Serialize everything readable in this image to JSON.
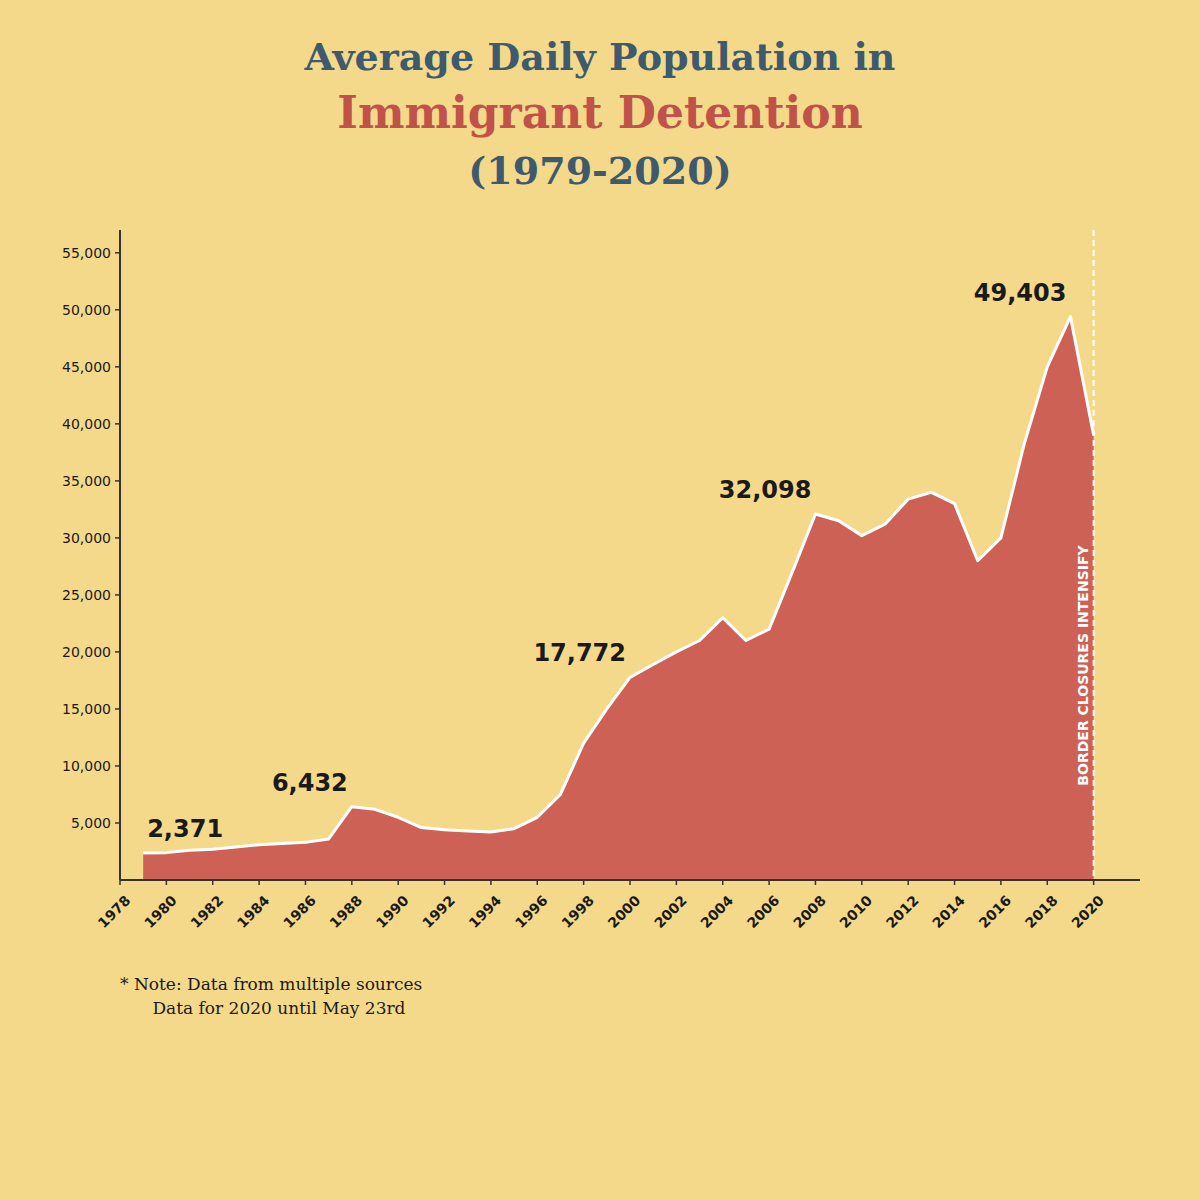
{
  "chart_data": {
    "type": "area",
    "title": "Average Daily Population in\nImmigrant Detention\n(1979-2020)",
    "x": [
      1979,
      1980,
      1981,
      1982,
      1983,
      1984,
      1985,
      1986,
      1987,
      1988,
      1989,
      1990,
      1991,
      1992,
      1993,
      1994,
      1995,
      1996,
      1997,
      1998,
      1999,
      2000,
      2001,
      2002,
      2003,
      2004,
      2005,
      2006,
      2007,
      2008,
      2009,
      2010,
      2011,
      2012,
      2013,
      2014,
      2015,
      2016,
      2017,
      2018,
      2019,
      2020
    ],
    "values": [
      2371,
      2400,
      2600,
      2700,
      2900,
      3100,
      3200,
      3300,
      3600,
      6432,
      6200,
      5500,
      4600,
      4400,
      4300,
      4200,
      4500,
      5500,
      7500,
      12000,
      15000,
      17772,
      18900,
      20000,
      21000,
      23000,
      21000,
      22000,
      27000,
      32098,
      31500,
      30200,
      31200,
      33400,
      34000,
      33000,
      28000,
      30000,
      38200,
      45000,
      49403,
      39000
    ],
    "color": "#cd6155",
    "xlim": [
      1978,
      2022
    ],
    "xticks": [
      1978,
      1980,
      1982,
      1984,
      1986,
      1988,
      1990,
      1992,
      1994,
      1996,
      1998,
      2000,
      2002,
      2004,
      2006,
      2008,
      2010,
      2012,
      2014,
      2016,
      2018,
      2020
    ],
    "ylim": [
      0,
      57000
    ],
    "yticks": [
      {
        "value": 5000,
        "label": "5,000"
      },
      {
        "value": 10000,
        "label": "10,000"
      },
      {
        "value": 15000,
        "label": "15,000"
      },
      {
        "value": 20000,
        "label": "20,000"
      },
      {
        "value": 25000,
        "label": "25,000"
      },
      {
        "value": 30000,
        "label": "30,000"
      },
      {
        "value": 35000,
        "label": "35,000"
      },
      {
        "value": 40000,
        "label": "40,000"
      },
      {
        "value": 45000,
        "label": "45,000"
      },
      {
        "value": 50000,
        "label": "50,000"
      },
      {
        "value": 55000,
        "label": "55,000"
      }
    ],
    "grid": false,
    "annotations": [
      {
        "x": 1979,
        "y": 2371,
        "text": "2,371"
      },
      {
        "x": 1988,
        "y": 6432,
        "text": "6,432"
      },
      {
        "x": 2000,
        "y": 17772,
        "text": "17,772"
      },
      {
        "x": 2008,
        "y": 32098,
        "text": "32,098"
      },
      {
        "x": 2019,
        "y": 49403,
        "text": "49,403"
      }
    ],
    "reference_line": {
      "x": 2020,
      "label": "BORDER CLOSURES INTENSIFY"
    },
    "note": "* Note: Data from multiple sources\n      Data for 2020 until May 23rd"
  }
}
